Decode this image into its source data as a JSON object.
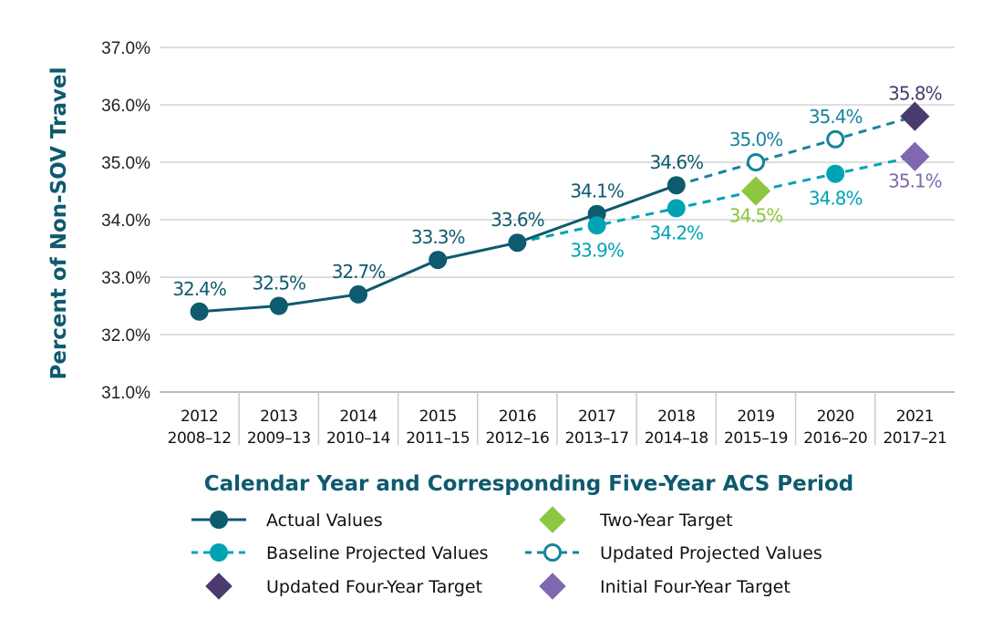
{
  "chart_data": {
    "type": "line",
    "xlabel": "Calendar Year and Corresponding Five-Year ACS Period",
    "ylabel": "Percent of Non-SOV Travel",
    "ylim": [
      31.0,
      37.0
    ],
    "yticks": [
      "31.0%",
      "32.0%",
      "33.0%",
      "34.0%",
      "35.0%",
      "36.0%",
      "37.0%"
    ],
    "grid": "horizontal",
    "legend_placement": "bottom",
    "categories": [
      {
        "year": "2012",
        "period": "2008–12"
      },
      {
        "year": "2013",
        "period": "2009–13"
      },
      {
        "year": "2014",
        "period": "2010–14"
      },
      {
        "year": "2015",
        "period": "2011–15"
      },
      {
        "year": "2016",
        "period": "2012–16"
      },
      {
        "year": "2017",
        "period": "2013–17"
      },
      {
        "year": "2018",
        "period": "2014–18"
      },
      {
        "year": "2019",
        "period": "2015–19"
      },
      {
        "year": "2020",
        "period": "2016–20"
      },
      {
        "year": "2021",
        "period": "2017–21"
      }
    ],
    "series": [
      {
        "name": "Actual Values",
        "color": "#0e5a6e",
        "style": "solid",
        "marker": "filled-circle",
        "points": [
          [
            "2012",
            32.4
          ],
          [
            "2013",
            32.5
          ],
          [
            "2014",
            32.7
          ],
          [
            "2015",
            33.3
          ],
          [
            "2016",
            33.6
          ],
          [
            "2017",
            34.1
          ],
          [
            "2018",
            34.6
          ]
        ],
        "labels": [
          "32.4%",
          "32.5%",
          "32.7%",
          "33.3%",
          "33.6%",
          "34.1%",
          "34.6%"
        ]
      },
      {
        "name": "Baseline Projected Values",
        "color": "#00a3b4",
        "style": "dashed",
        "marker": "filled-circle",
        "points": [
          [
            "2016",
            33.6
          ],
          [
            "2017",
            33.9
          ],
          [
            "2018",
            34.2
          ],
          [
            "2019",
            34.5
          ],
          [
            "2020",
            34.8
          ],
          [
            "2021",
            35.1
          ]
        ],
        "labels": [
          "",
          "33.9%",
          "34.2%",
          "",
          "34.8%",
          ""
        ]
      },
      {
        "name": "Updated Projected Values",
        "color": "#17849a",
        "style": "dashed",
        "marker": "open-circle",
        "points": [
          [
            "2018",
            34.6
          ],
          [
            "2019",
            35.0
          ],
          [
            "2020",
            35.4
          ],
          [
            "2021",
            35.8
          ]
        ],
        "labels": [
          "",
          "35.0%",
          "35.4%",
          ""
        ]
      },
      {
        "name": "Two-Year Target",
        "color": "#8dc63f",
        "marker": "diamond",
        "points": [
          [
            "2019",
            34.5
          ]
        ],
        "labels": [
          "34.5%"
        ]
      },
      {
        "name": "Updated Four-Year Target",
        "color": "#4b3a6e",
        "marker": "diamond",
        "points": [
          [
            "2021",
            35.8
          ]
        ],
        "labels": [
          "35.8%"
        ]
      },
      {
        "name": "Initial Four-Year Target",
        "color": "#7f68b0",
        "marker": "diamond",
        "points": [
          [
            "2021",
            35.1
          ]
        ],
        "labels": [
          "35.1%"
        ]
      }
    ],
    "legend_order": [
      0,
      3,
      1,
      2,
      4,
      5
    ]
  }
}
